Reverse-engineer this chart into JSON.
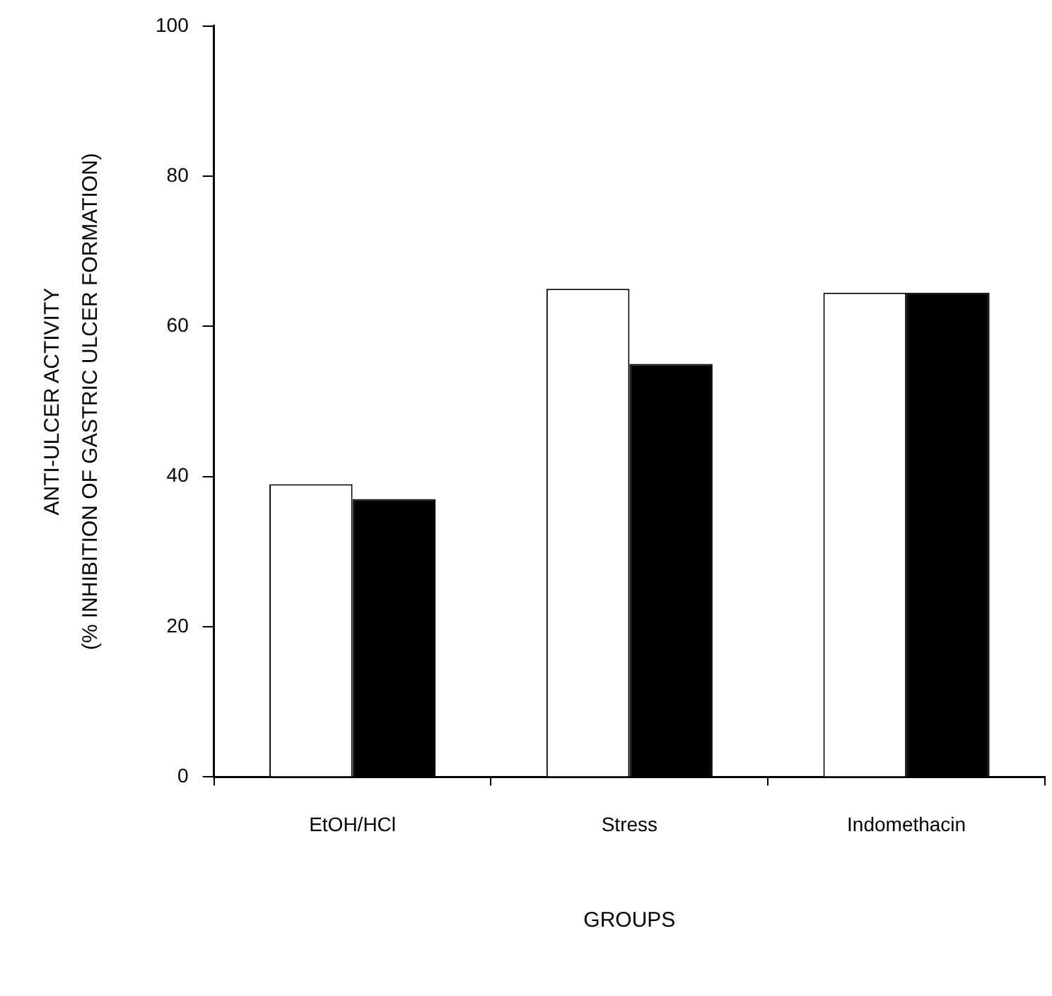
{
  "chart_data": {
    "type": "bar",
    "xlabel": "GROUPS",
    "ylabel": "ANTI-ULCER ACTIVITY\n(% INHIBITION OF GASTRIC ULCER FORMATION)",
    "categories": [
      "EtOH/HCl",
      "Stress",
      "Indomethacin"
    ],
    "series": [
      {
        "color": "#ffffff",
        "values": [
          39,
          65,
          64.5
        ]
      },
      {
        "color": "#000000",
        "values": [
          37,
          55,
          64.5
        ]
      }
    ],
    "ylim": [
      0,
      100
    ],
    "yticks": [
      0,
      20,
      40,
      60,
      80,
      100
    ],
    "grid": false,
    "legend": false
  }
}
